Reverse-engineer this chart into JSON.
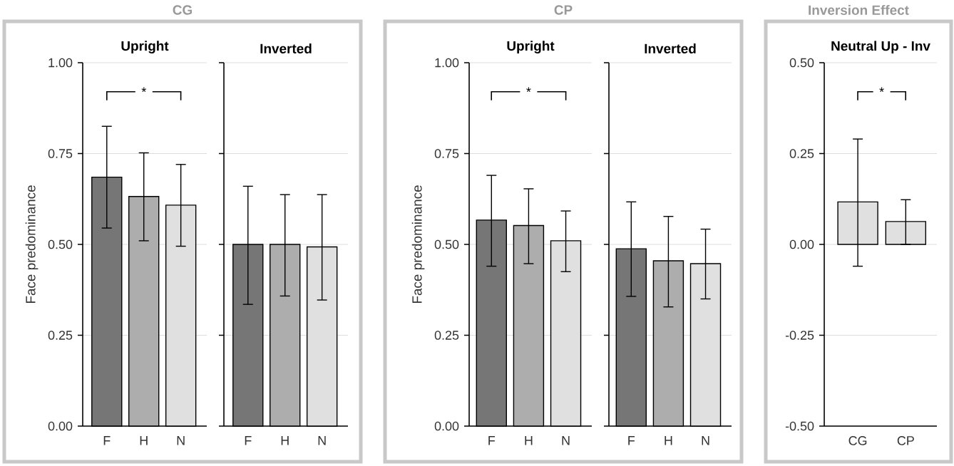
{
  "chart_data": [
    {
      "type": "bar",
      "title": "Upright",
      "ylabel": "Face predominance",
      "annotations": [
        "CG",
        "*"
      ],
      "categories": [
        "F",
        "H",
        "N"
      ],
      "values": [
        0.685,
        0.632,
        0.608
      ],
      "colors": [
        "#767676",
        "#adadad",
        "#e0e0e0"
      ],
      "errors": [
        [
          0.545,
          0.825
        ],
        [
          0.51,
          0.752
        ],
        [
          0.495,
          0.72
        ]
      ],
      "ylim": [
        0,
        1
      ],
      "yticks": [
        {
          "value": 0,
          "label": "0.00"
        },
        {
          "value": 0.25,
          "label": "0.25"
        },
        {
          "value": 0.5,
          "label": "0.50"
        },
        {
          "value": 0.75,
          "label": "0.75"
        },
        {
          "value": 1,
          "label": "1.00"
        }
      ],
      "grid": "y"
    },
    {
      "type": "bar",
      "title": "Inverted",
      "categories": [
        "F",
        "H",
        "N"
      ],
      "values": [
        0.5,
        0.5,
        0.493
      ],
      "colors": [
        "#767676",
        "#adadad",
        "#e0e0e0"
      ],
      "errors": [
        [
          0.335,
          0.66
        ],
        [
          0.358,
          0.637
        ],
        [
          0.347,
          0.637
        ]
      ],
      "ylim": [
        0,
        1
      ],
      "yticks": [
        {
          "value": 0,
          "label": null
        },
        {
          "value": 0.25,
          "label": null
        },
        {
          "value": 0.5,
          "label": null
        },
        {
          "value": 0.75,
          "label": null
        },
        {
          "value": 1,
          "label": null
        }
      ],
      "tick_labels": "x",
      "grid": "y"
    },
    {
      "type": "bar",
      "title": "Upright",
      "ylabel": "Face predominance",
      "annotations": [
        "CP",
        "*"
      ],
      "categories": [
        "F",
        "H",
        "N"
      ],
      "values": [
        0.567,
        0.552,
        0.51
      ],
      "colors": [
        "#767676",
        "#adadad",
        "#e0e0e0"
      ],
      "errors": [
        [
          0.44,
          0.69
        ],
        [
          0.447,
          0.653
        ],
        [
          0.425,
          0.592
        ]
      ],
      "ylim": [
        0,
        1
      ],
      "yticks": [
        {
          "value": 0,
          "label": "0.00"
        },
        {
          "value": 0.25,
          "label": "0.25"
        },
        {
          "value": 0.5,
          "label": "0.50"
        },
        {
          "value": 0.75,
          "label": "0.75"
        },
        {
          "value": 1,
          "label": "1.00"
        }
      ],
      "grid": "y"
    },
    {
      "type": "bar",
      "title": "Inverted",
      "categories": [
        "F",
        "H",
        "N"
      ],
      "values": [
        0.488,
        0.455,
        0.447
      ],
      "colors": [
        "#767676",
        "#adadad",
        "#e0e0e0"
      ],
      "errors": [
        [
          0.357,
          0.617
        ],
        [
          0.328,
          0.577
        ],
        [
          0.35,
          0.542
        ]
      ],
      "ylim": [
        0,
        1
      ],
      "yticks": [
        {
          "value": 0,
          "label": null
        },
        {
          "value": 0.25,
          "label": null
        },
        {
          "value": 0.5,
          "label": null
        },
        {
          "value": 0.75,
          "label": null
        },
        {
          "value": 1,
          "label": null
        }
      ],
      "tick_labels": "x",
      "grid": "y"
    },
    {
      "type": "bar",
      "title": "Neutral Up - Inv",
      "annotations": [
        "Inversion Effect",
        "*"
      ],
      "categories": [
        "CG",
        "CP"
      ],
      "values": [
        0.117,
        0.063
      ],
      "colors": [
        "#e0e0e0",
        "#e0e0e0"
      ],
      "errors": [
        [
          -0.06,
          0.29
        ],
        [
          0.0,
          0.123
        ]
      ],
      "ylim": [
        -0.5,
        0.5
      ],
      "yticks": [
        {
          "value": -0.5,
          "label": "-0.50"
        },
        {
          "value": -0.25,
          "label": "-0.25"
        },
        {
          "value": 0,
          "label": "0.00"
        },
        {
          "value": 0.25,
          "label": "0.25"
        },
        {
          "value": 0.5,
          "label": "0.50"
        }
      ],
      "grid": "y"
    }
  ]
}
